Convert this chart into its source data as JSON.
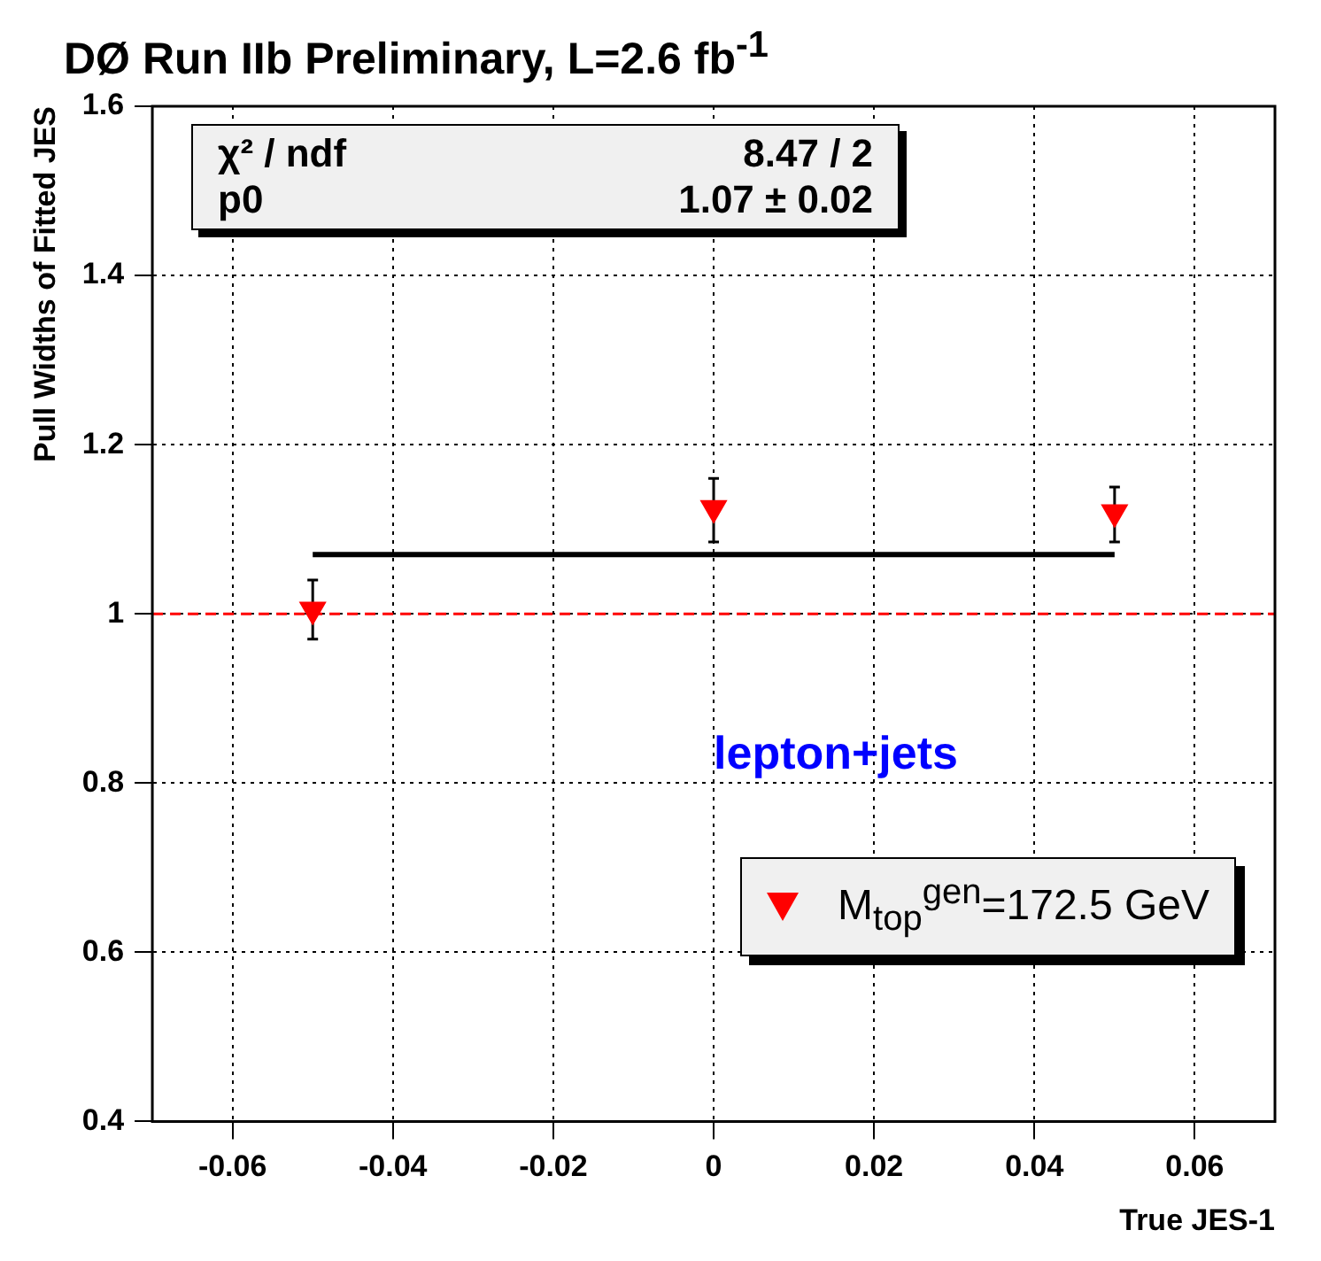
{
  "chart_data": {
    "type": "scatter",
    "title": "DØ Run IIb Preliminary, L=2.6 fb$^{-1}$",
    "xlabel": "True JES-1",
    "ylabel": "Pull Widths of Fitted JES",
    "series": [
      {
        "name": "M$_{top}$$^{gen}$=172.5 GeV",
        "marker": "triangle",
        "color": "#ff0000",
        "x": [
          -0.05,
          0,
          0.05
        ],
        "values": [
          1.005,
          1.125,
          1.12
        ],
        "errors": [
          [
            0.97,
            1.04
          ],
          [
            1.085,
            1.16
          ],
          [
            1.085,
            1.15
          ]
        ]
      },
      {
        "type": "line",
        "color": "#000000",
        "x": [
          -0.05,
          0.05
        ],
        "values": [
          1.07,
          1.07
        ]
      }
    ],
    "xlim": [
      -0.07,
      0.07
    ],
    "xticks": [
      -0.06,
      -0.04,
      -0.02,
      0,
      0.02,
      0.04,
      0.06
    ],
    "ylim": [
      0.4,
      1.6
    ],
    "yticks": [
      0.4,
      0.6,
      0.8,
      1,
      1.2,
      1.4,
      1.6
    ],
    "ref_lines": [
      {
        "axis": "y",
        "value": 1,
        "color": "#ff0000",
        "line_style": "dashed"
      }
    ],
    "annotations": [
      "χ² / ndf",
      "8.47 / 2",
      "p0",
      "1.07 ± 0.02",
      "lepton+jets"
    ],
    "grid": true,
    "legend": "bottom right"
  }
}
